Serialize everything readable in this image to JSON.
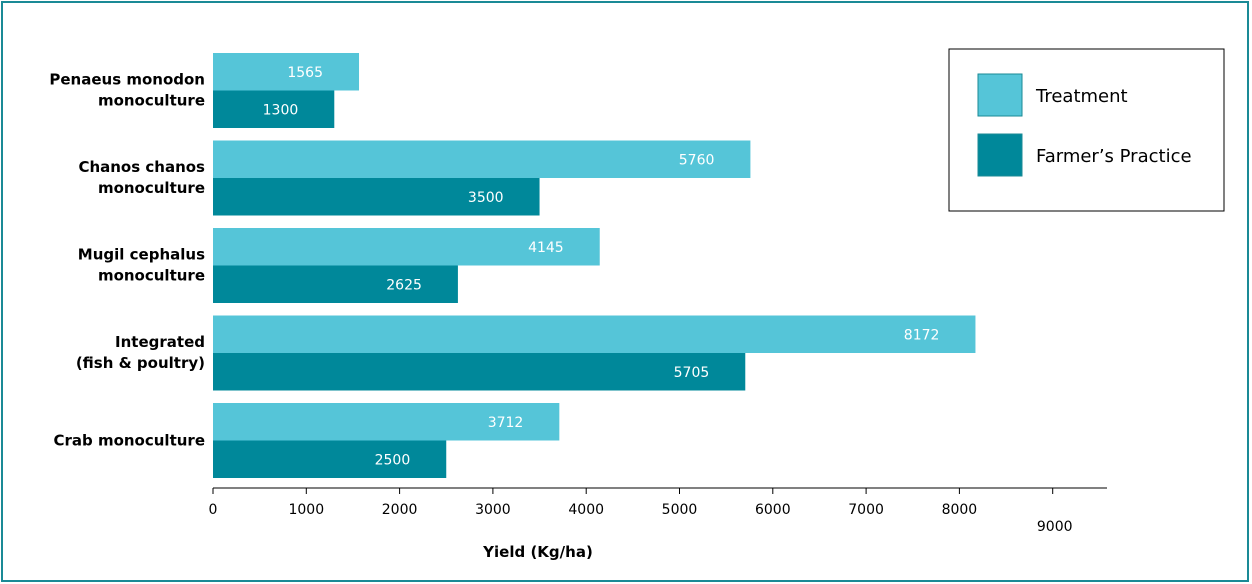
{
  "chart_data": {
    "type": "bar",
    "orientation": "horizontal",
    "title": "",
    "xlabel": "Yield (Kg/ha)",
    "ylabel": "",
    "xlim": [
      0,
      9000
    ],
    "x_ticks": [
      0,
      1000,
      2000,
      3000,
      4000,
      5000,
      6000,
      7000,
      8000,
      9000
    ],
    "grid": false,
    "legend_position": "top-right",
    "categories": [
      [
        "Penaeus monodon",
        "monoculture"
      ],
      [
        "Chanos chanos",
        "monoculture"
      ],
      [
        "Mugil cephalus",
        "monoculture"
      ],
      [
        "Integrated",
        "(fish & poultry)"
      ],
      [
        "Crab monoculture"
      ]
    ],
    "series": [
      {
        "name": "Treatment",
        "color": "#55c5d8",
        "values": [
          1565,
          5760,
          4145,
          8172,
          3712
        ]
      },
      {
        "name": "Farmer’s Practice",
        "color": "#00889a",
        "values": [
          1300,
          3500,
          2625,
          5705,
          2500
        ]
      }
    ]
  },
  "colors": {
    "frame_border": "#1a8a96",
    "axis": "#000000"
  }
}
